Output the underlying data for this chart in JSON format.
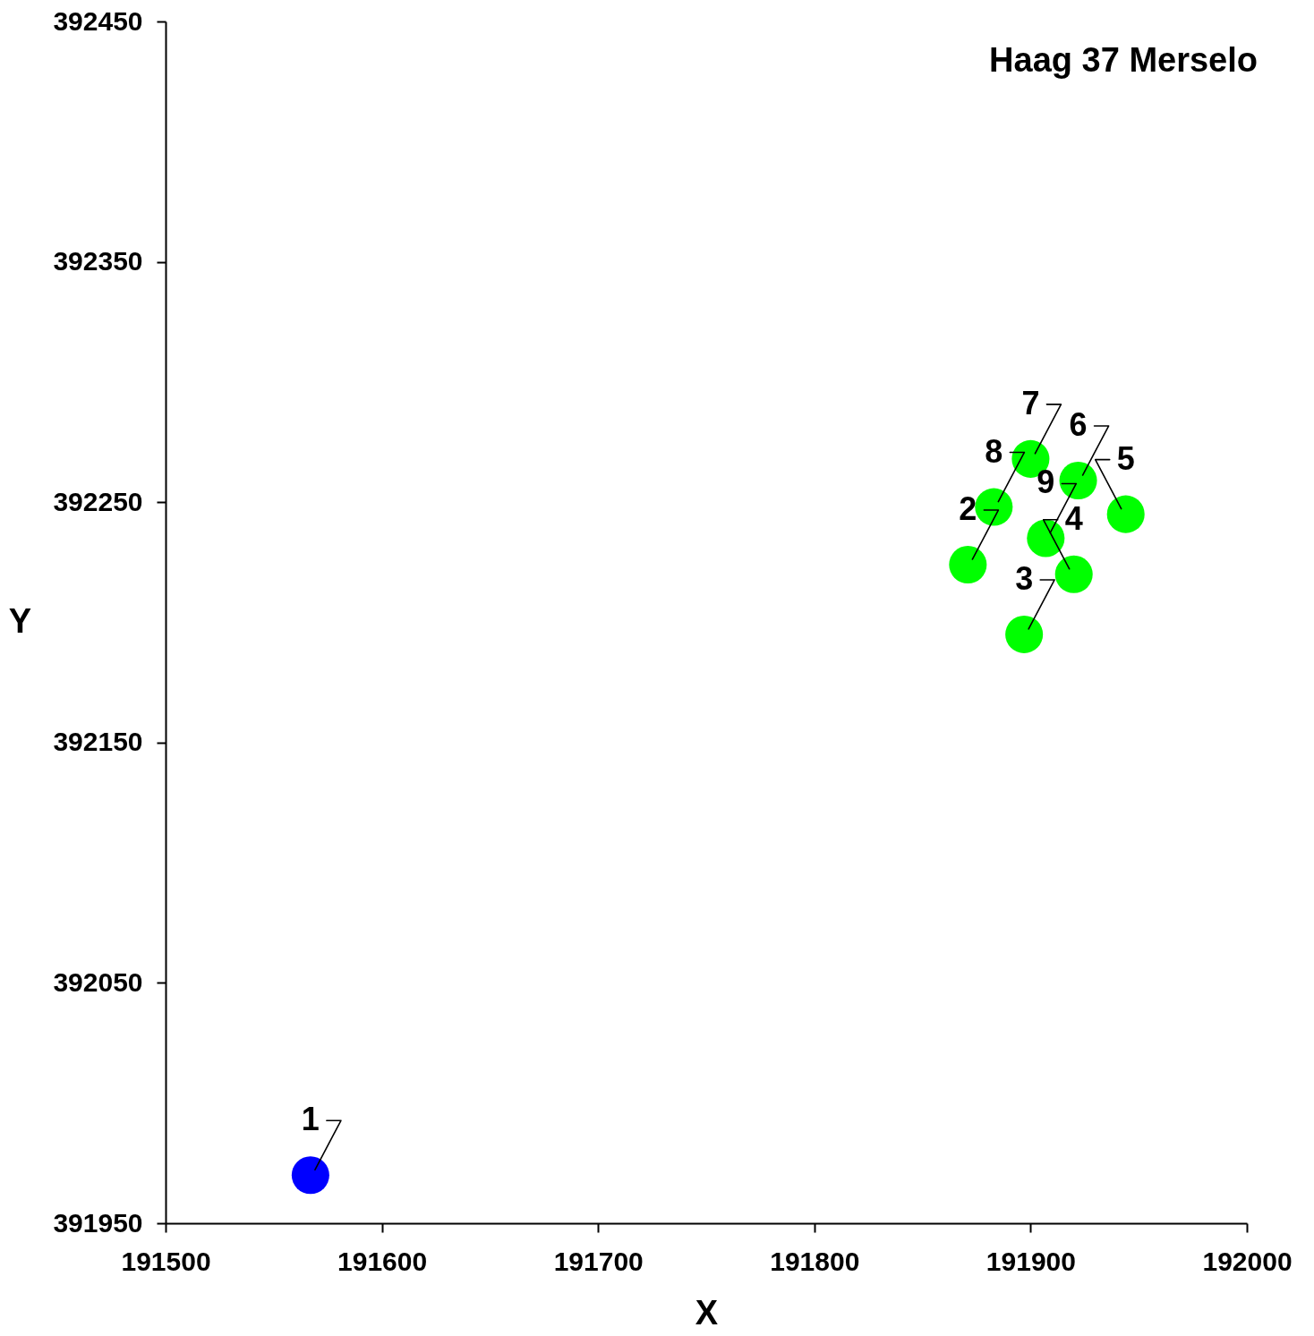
{
  "chart_data": {
    "type": "scatter",
    "title": "Haag 37 Merselo",
    "xlabel": "X",
    "ylabel": "Y",
    "x": [
      191567,
      191871,
      191897,
      191920,
      191944,
      191922,
      191900,
      191883,
      191907
    ],
    "values": [
      391970,
      392224,
      392195,
      392220,
      392245,
      392259,
      392268,
      392248,
      392235
    ],
    "colors": [
      "#0000ff",
      "#00ff00",
      "#00ff00",
      "#00ff00",
      "#00ff00",
      "#00ff00",
      "#00ff00",
      "#00ff00",
      "#00ff00"
    ],
    "annotations": [
      {
        "text": "1",
        "x": 191567,
        "y": 391970
      },
      {
        "text": "2",
        "x": 191871,
        "y": 392224
      },
      {
        "text": "3",
        "x": 191897,
        "y": 392195
      },
      {
        "text": "4",
        "x": 191920,
        "y": 392220
      },
      {
        "text": "5",
        "x": 191944,
        "y": 392245
      },
      {
        "text": "6",
        "x": 191922,
        "y": 392259
      },
      {
        "text": "7",
        "x": 191900,
        "y": 392268
      },
      {
        "text": "8",
        "x": 191883,
        "y": 392248
      },
      {
        "text": "9",
        "x": 191907,
        "y": 392235
      }
    ],
    "marker": "circle",
    "xlim": [
      191500,
      192000
    ],
    "ylim": [
      391950,
      392450
    ],
    "xticks": [
      191500,
      191600,
      191700,
      191800,
      191900,
      192000
    ],
    "yticks": [
      391950,
      392050,
      392150,
      392250,
      392350,
      392450
    ]
  }
}
